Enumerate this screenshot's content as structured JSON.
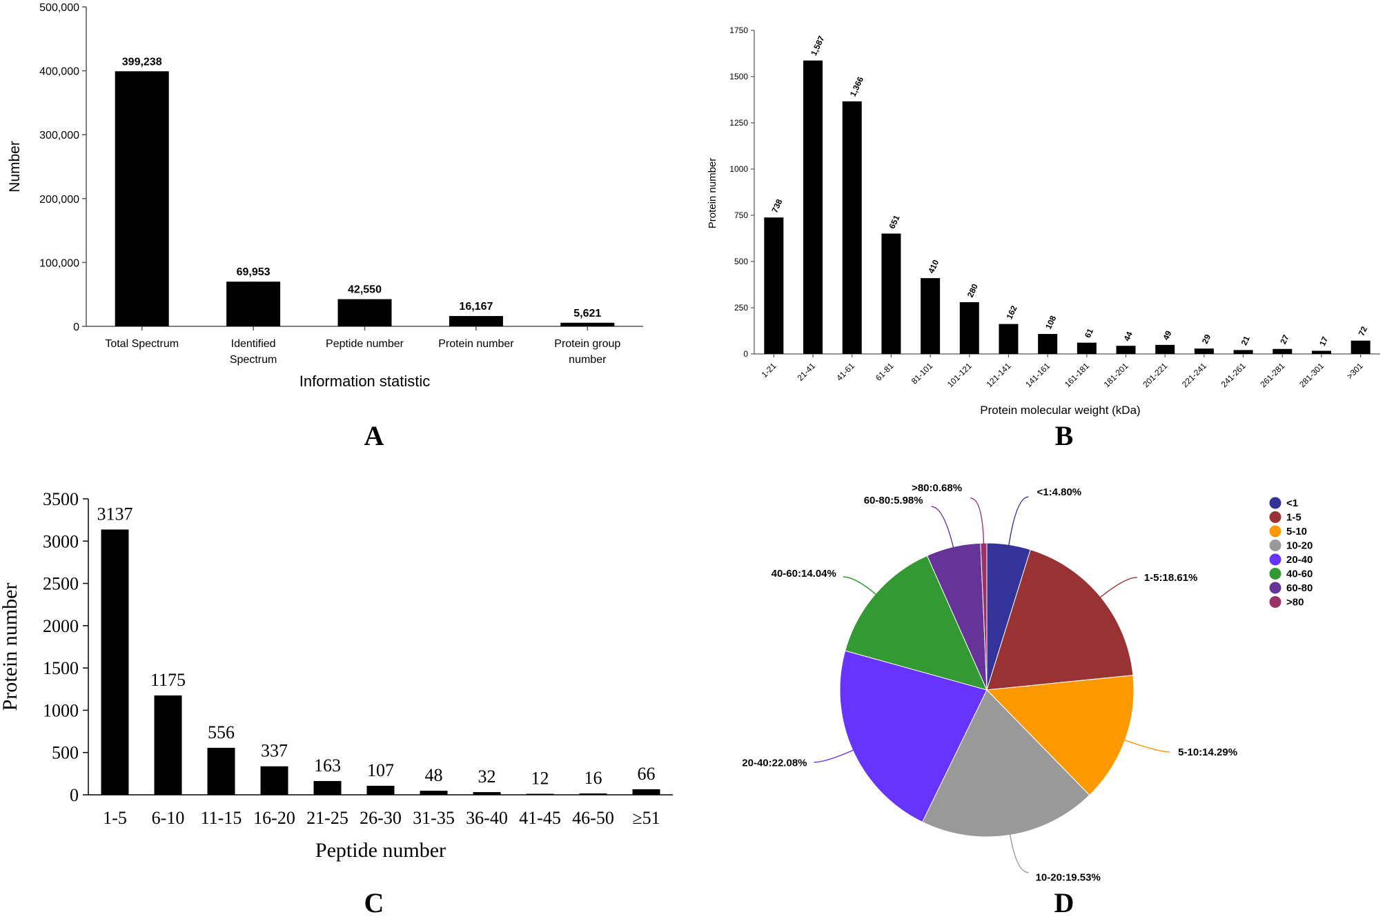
{
  "chart_data": [
    {
      "panel": "A",
      "type": "bar",
      "title": "",
      "xlabel": "Information statistic",
      "ylabel": "Number",
      "ylim": [
        0,
        500000
      ],
      "yticks": [
        "0",
        "100,000",
        "200,000",
        "300,000",
        "400,000",
        "500,000"
      ],
      "categories": [
        [
          "Total Spectrum"
        ],
        [
          "Identified",
          "Spectrum"
        ],
        [
          "Peptide number"
        ],
        [
          "Protein number"
        ],
        [
          "Protein group",
          "number"
        ]
      ],
      "values": [
        399238,
        69953,
        42550,
        16167,
        5621
      ],
      "labels": [
        "399,238",
        "69,953",
        "42,550",
        "16,167",
        "5,621"
      ]
    },
    {
      "panel": "B",
      "type": "bar",
      "title": "",
      "xlabel": "Protein molecular weight (kDa)",
      "ylabel": "Protein number",
      "ylim": [
        0,
        1750
      ],
      "yticks": [
        "0",
        "250",
        "500",
        "750",
        "1000",
        "1250",
        "1500",
        "1750"
      ],
      "categories": [
        "1-21",
        "21-41",
        "41-61",
        "61-81",
        "81-101",
        "101-121",
        "121-141",
        "141-161",
        "161-181",
        "181-201",
        "201-221",
        "221-241",
        "241-261",
        "261-281",
        "281-301",
        ">301"
      ],
      "values": [
        738,
        1587,
        1366,
        651,
        410,
        280,
        162,
        108,
        61,
        44,
        49,
        29,
        21,
        27,
        17,
        72
      ],
      "labels": [
        "738",
        "1,587",
        "1,366",
        "651",
        "410",
        "280",
        "162",
        "108",
        "61",
        "44",
        "49",
        "29",
        "21",
        "27",
        "17",
        "72"
      ]
    },
    {
      "panel": "C",
      "type": "bar",
      "title": "",
      "xlabel": "Peptide number",
      "ylabel": "Protein number",
      "ylim": [
        0,
        3500
      ],
      "yticks": [
        "0",
        "500",
        "1000",
        "1500",
        "2000",
        "2500",
        "3000",
        "3500"
      ],
      "categories": [
        "1-5",
        "6-10",
        "11-15",
        "16-20",
        "21-25",
        "26-30",
        "31-35",
        "36-40",
        "41-45",
        "46-50",
        "≥51"
      ],
      "values": [
        3137,
        1175,
        556,
        337,
        163,
        107,
        48,
        32,
        12,
        16,
        66
      ],
      "labels": [
        "3137",
        "1175",
        "556",
        "337",
        "163",
        "107",
        "48",
        "32",
        "12",
        "16",
        "66"
      ]
    },
    {
      "panel": "D",
      "type": "pie",
      "title": "",
      "categories": [
        "<1",
        "1-5",
        "5-10",
        "10-20",
        "20-40",
        "40-60",
        "60-80",
        ">80"
      ],
      "values": [
        4.8,
        18.61,
        14.29,
        19.53,
        22.08,
        14.04,
        5.98,
        0.68
      ],
      "labels": [
        "<1:4.80%",
        "1-5:18.61%",
        "5-10:14.29%",
        "10-20:19.53%",
        "20-40:22.08%",
        "40-60:14.04%",
        "60-80:5.98%",
        ">80:0.68%"
      ],
      "colors": [
        "#333399",
        "#993333",
        "#ff9900",
        "#999999",
        "#6633ff",
        "#339933",
        "#663399",
        "#993366"
      ],
      "legend_position": "top-right"
    }
  ],
  "panel_letters": {
    "a": "A",
    "b": "B",
    "c": "C",
    "d": "D"
  }
}
